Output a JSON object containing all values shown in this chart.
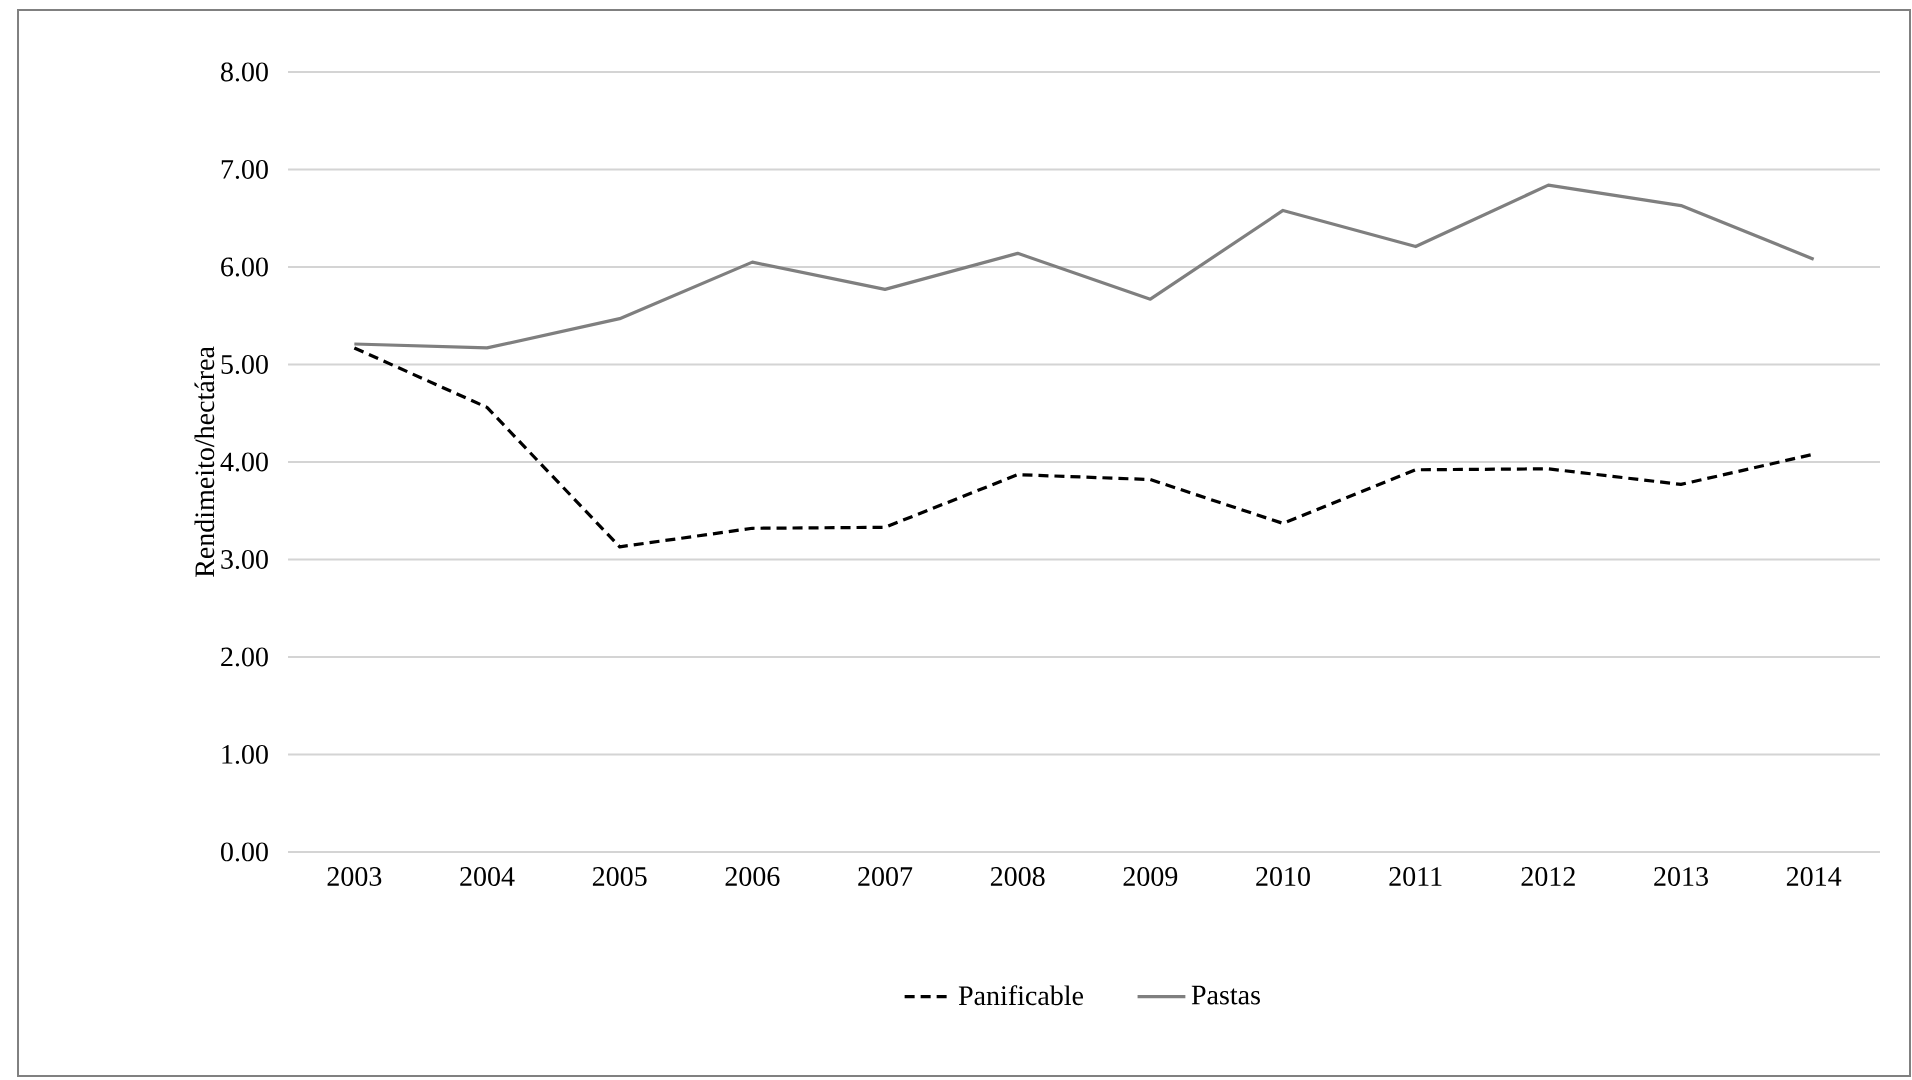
{
  "chart_data": {
    "type": "line",
    "ylabel": "Rendimeito/hectárea",
    "categories": [
      "2003",
      "2004",
      "2005",
      "2006",
      "2007",
      "2008",
      "2009",
      "2010",
      "2011",
      "2012",
      "2013",
      "2014"
    ],
    "series": [
      {
        "name": "Panificable",
        "color": "#000000",
        "line_style": "dashed",
        "values": [
          5.17,
          4.56,
          3.13,
          3.32,
          3.33,
          3.87,
          3.82,
          3.37,
          3.92,
          3.93,
          3.77,
          4.08
        ]
      },
      {
        "name": "Pastas",
        "color": "#7f7f7f",
        "line_style": "solid",
        "values": [
          5.21,
          5.17,
          5.47,
          6.05,
          5.77,
          6.14,
          5.67,
          6.58,
          6.21,
          6.84,
          6.63,
          6.08
        ]
      }
    ],
    "ylim": [
      0,
      8
    ],
    "yticks": [
      {
        "value": 0,
        "label": "0.00"
      },
      {
        "value": 1,
        "label": "1.00"
      },
      {
        "value": 2,
        "label": "2.00"
      },
      {
        "value": 3,
        "label": "3.00"
      },
      {
        "value": 4,
        "label": "4.00"
      },
      {
        "value": 5,
        "label": "5.00"
      },
      {
        "value": 6,
        "label": "6.00"
      },
      {
        "value": 7,
        "label": "7.00"
      },
      {
        "value": 8,
        "label": "8.00"
      }
    ],
    "grid": "y",
    "legend": "bottom",
    "marker": "none"
  }
}
